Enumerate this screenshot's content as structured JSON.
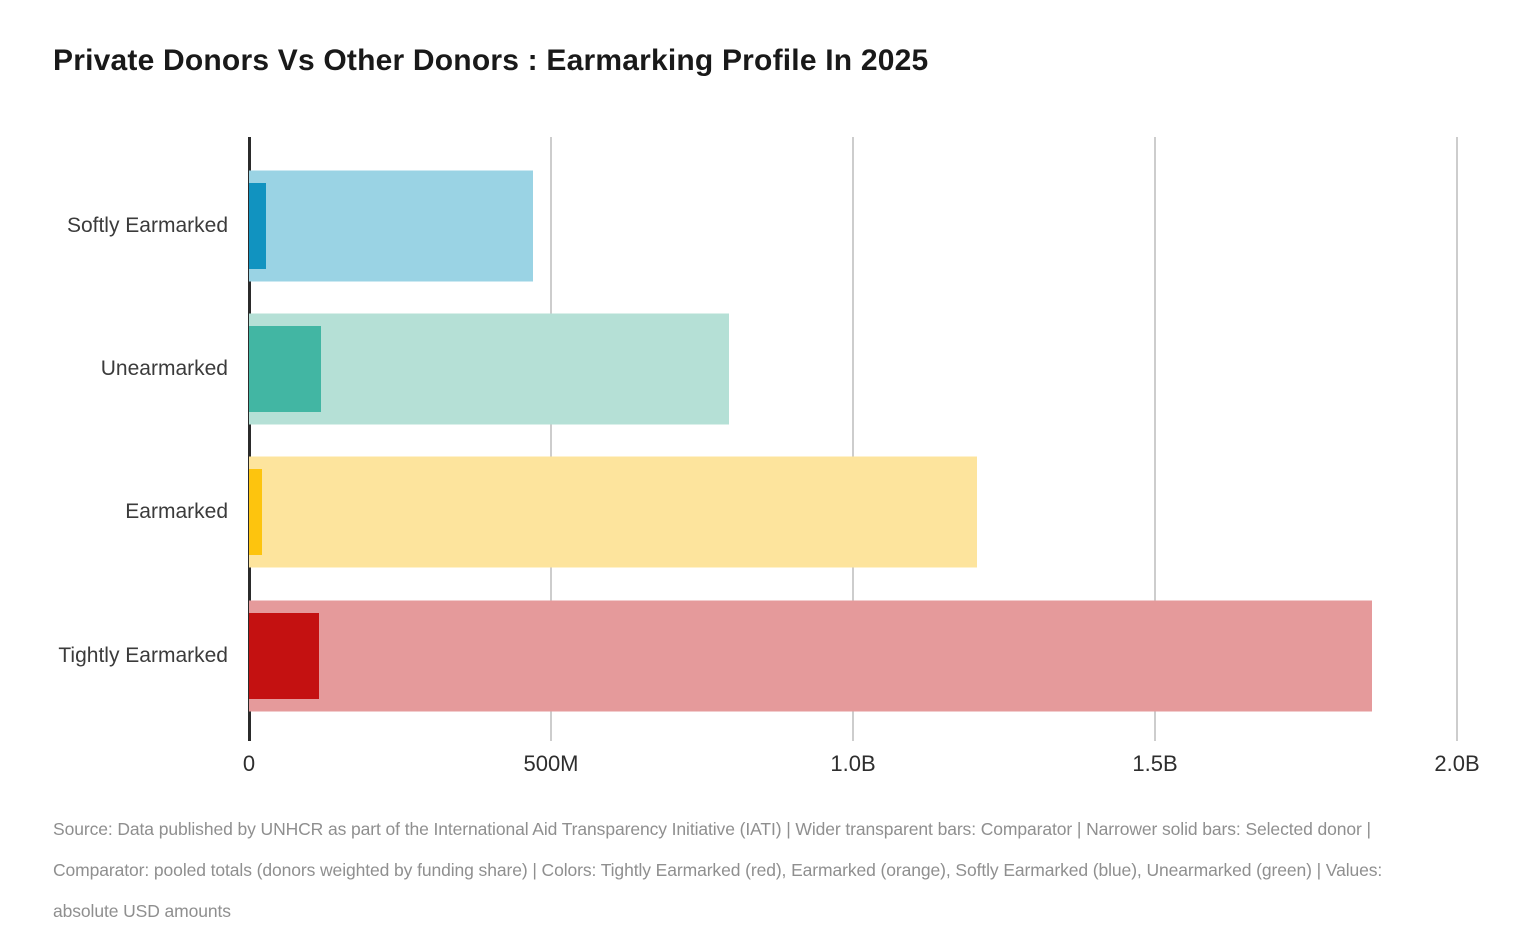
{
  "title": "Private Donors Vs Other Donors : Earmarking Profile In 2025",
  "chart_data": {
    "type": "bar",
    "orientation": "horizontal",
    "title": "Private Donors Vs Other Donors : Earmarking Profile In 2025",
    "unit": "USD millions",
    "categories": [
      "Softly Earmarked",
      "Unearmarked",
      "Earmarked",
      "Tightly Earmarked"
    ],
    "series": [
      {
        "name": "Comparator (wider transparent bars)",
        "values": [
          470,
          795,
          1205,
          1860
        ]
      },
      {
        "name": "Selected donor (narrower solid bars)",
        "values": [
          28,
          119,
          22,
          116
        ]
      }
    ],
    "xlim": [
      0,
      2000
    ],
    "x_ticks": [
      {
        "label": "0",
        "value": 0
      },
      {
        "label": "500M",
        "value": 500
      },
      {
        "label": "1.0B",
        "value": 1000
      },
      {
        "label": "1.5B",
        "value": 1500
      },
      {
        "label": "2.0B",
        "value": 2000
      }
    ],
    "grid": "vertical",
    "legend_position": "none",
    "colors": [
      {
        "category": "Softly Earmarked",
        "solid": "#1193c0",
        "light": "#9ad3e4"
      },
      {
        "category": "Unearmarked",
        "solid": "#42b6a3",
        "light": "#b5e0d6"
      },
      {
        "category": "Earmarked",
        "solid": "#fdc40e",
        "light": "#fde49d"
      },
      {
        "category": "Tightly Earmarked",
        "solid": "#c41111",
        "light": "#e59a9b"
      }
    ],
    "axis_color": "#2b2b2b",
    "gridline_color": "#cdcdcd"
  },
  "footer": {
    "lines": [
      "Source: Data published by UNHCR as part of the International Aid Transparency Initiative (IATI) | Wider transparent bars: Comparator | Narrower solid bars: Selected donor |",
      "Comparator: pooled totals (donors weighted by funding share) | Colors: Tightly Earmarked (red), Earmarked (orange), Softly Earmarked (blue), Unearmarked (green) | Values:",
      "absolute USD amounts"
    ]
  }
}
